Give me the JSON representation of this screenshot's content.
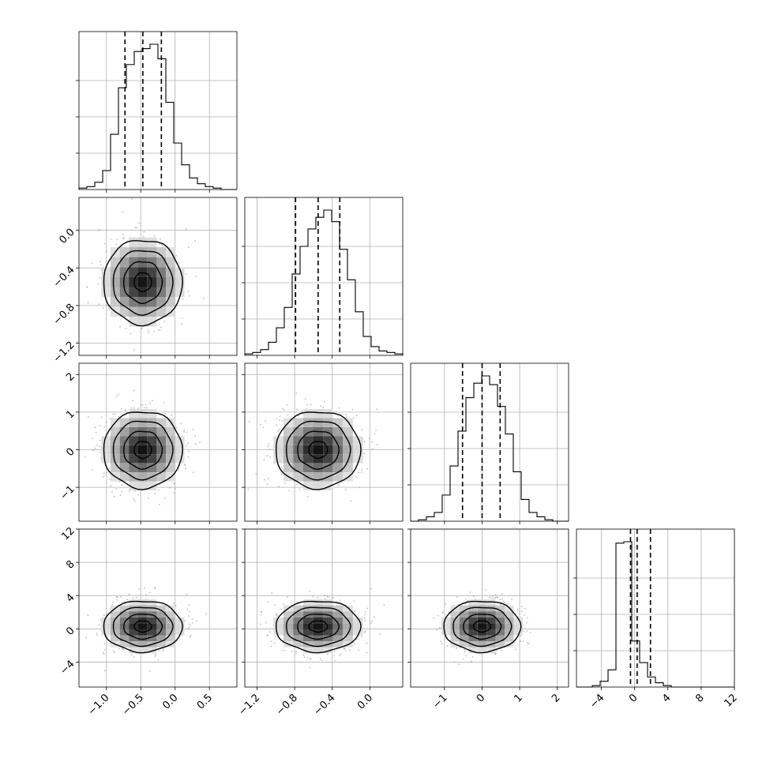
{
  "chart_data": {
    "type": "corner",
    "parameters": [
      {
        "range": [
          -1.4,
          0.9
        ],
        "ticks": [
          -1.0,
          -0.5,
          0.0,
          0.5
        ],
        "tick_labels": [
          "−1.0",
          "−0.5",
          "0.0",
          "0.5"
        ],
        "mean": -0.47,
        "std": 0.28,
        "quantiles": [
          -0.73,
          -0.47,
          -0.2
        ],
        "hist": [
          0.01,
          0.02,
          0.05,
          0.13,
          0.38,
          0.7,
          0.86,
          0.95,
          0.97,
          1.0,
          0.9,
          0.6,
          0.32,
          0.17,
          0.08,
          0.04,
          0.02,
          0.01,
          0.0,
          0.0
        ]
      },
      {
        "range": [
          -1.33,
          0.35
        ],
        "ticks": [
          -1.2,
          -0.8,
          -0.4,
          0.0
        ],
        "tick_labels": [
          "−1.2",
          "−0.8",
          "−0.4",
          "0.0"
        ],
        "mean": -0.55,
        "std": 0.22,
        "quantiles": [
          -0.79,
          -0.55,
          -0.32
        ],
        "hist": [
          0.01,
          0.02,
          0.04,
          0.09,
          0.19,
          0.33,
          0.56,
          0.75,
          0.87,
          0.95,
          1.0,
          0.92,
          0.73,
          0.52,
          0.3,
          0.13,
          0.06,
          0.03,
          0.02,
          0.01
        ]
      },
      {
        "range": [
          -1.9,
          2.3
        ],
        "ticks": [
          -1,
          0,
          1,
          2
        ],
        "tick_labels": [
          "−1",
          "0",
          "1",
          "2"
        ],
        "mean": 0.0,
        "std": 0.5,
        "quantiles": [
          -0.52,
          0.0,
          0.48
        ],
        "hist": [
          0.0,
          0.01,
          0.03,
          0.06,
          0.18,
          0.38,
          0.62,
          0.85,
          0.95,
          1.0,
          0.94,
          0.79,
          0.6,
          0.34,
          0.15,
          0.06,
          0.03,
          0.01,
          0.0,
          0.0
        ]
      },
      {
        "range": [
          -7,
          12
        ],
        "ticks": [
          -4,
          0,
          4,
          8,
          12
        ],
        "tick_labels": [
          "−4",
          "0",
          "4",
          "8",
          "12"
        ],
        "mean": 0.3,
        "std": 1.5,
        "quantiles": [
          -0.5,
          0.3,
          1.9
        ],
        "hist": [
          0.0,
          0.0,
          0.01,
          0.04,
          0.12,
          1.0,
          1.01,
          0.32,
          0.17,
          0.07,
          0.03,
          0.01,
          0.0,
          0.0,
          0.0,
          0.0,
          0.0,
          0.0,
          0.0,
          0.0
        ]
      }
    ],
    "levels": [
      0.12,
      0.39,
      0.68,
      0.86
    ],
    "grid": true
  }
}
